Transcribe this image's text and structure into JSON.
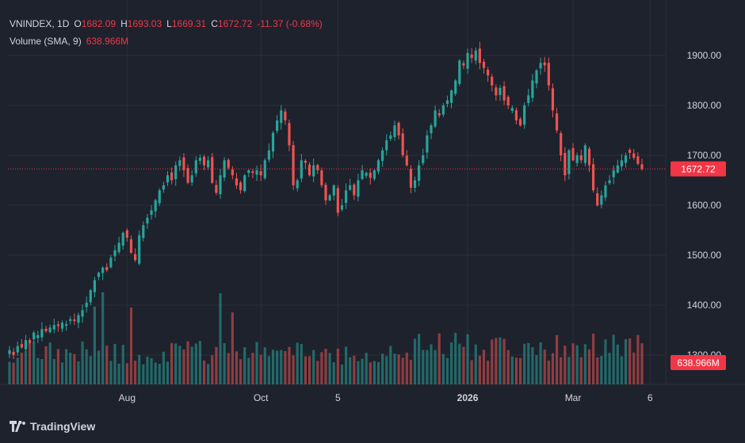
{
  "legend": {
    "symbol": "VNINDEX",
    "interval": "1D",
    "open_label": "O",
    "open": "1682.09",
    "high_label": "H",
    "high": "1693.03",
    "low_label": "L",
    "low": "1669.31",
    "close_label": "C",
    "close": "1672.72",
    "change": "-11.37 (-0.68%)",
    "volume_label": "Volume (SMA, 9)",
    "volume_value": "638.966M"
  },
  "badges": {
    "last_price": "1672.72",
    "last_volume": "638.966M"
  },
  "brand": {
    "name": "TradingView"
  },
  "colors": {
    "up": "#26a69a",
    "down": "#ef5350",
    "background": "#1e222d",
    "grid": "#2a2e39",
    "price_line": "#f23645"
  },
  "chart_data": {
    "type": "candlestick",
    "y_axis": {
      "ticks": [
        "1900.00",
        "1800.00",
        "1700.00",
        "1600.00",
        "1500.00",
        "1400.00",
        "1300.00"
      ],
      "ylim": [
        1235,
        1955
      ]
    },
    "x_axis": {
      "ticks": [
        {
          "label": "Aug",
          "index": 29,
          "bold": false
        },
        {
          "label": "Oct",
          "index": 62,
          "bold": false
        },
        {
          "label": "5",
          "index": 81,
          "bold": false
        },
        {
          "label": "2026",
          "index": 113,
          "bold": true
        },
        {
          "label": "Mar",
          "index": 139,
          "bold": false
        },
        {
          "label": "6",
          "index": 158,
          "bold": false
        }
      ]
    },
    "last_price": 1672.72,
    "candle_closes": [
      1310,
      1300,
      1318,
      1315,
      1330,
      1325,
      1345,
      1340,
      1352,
      1348,
      1355,
      1360,
      1358,
      1365,
      1362,
      1372,
      1368,
      1380,
      1390,
      1405,
      1430,
      1450,
      1465,
      1475,
      1470,
      1495,
      1510,
      1525,
      1545,
      1535,
      1505,
      1490,
      1540,
      1560,
      1575,
      1590,
      1610,
      1630,
      1640,
      1660,
      1650,
      1680,
      1690,
      1670,
      1645,
      1660,
      1690,
      1695,
      1680,
      1690,
      1645,
      1625,
      1660,
      1690,
      1675,
      1660,
      1640,
      1630,
      1660,
      1670,
      1665,
      1670,
      1660,
      1690,
      1710,
      1745,
      1770,
      1790,
      1770,
      1720,
      1640,
      1650,
      1690,
      1685,
      1660,
      1680,
      1670,
      1640,
      1610,
      1620,
      1640,
      1585,
      1600,
      1630,
      1640,
      1620,
      1650,
      1670,
      1665,
      1655,
      1670,
      1690,
      1710,
      1730,
      1740,
      1760,
      1740,
      1700,
      1680,
      1635,
      1650,
      1680,
      1700,
      1740,
      1760,
      1790,
      1780,
      1800,
      1810,
      1830,
      1850,
      1890,
      1880,
      1905,
      1895,
      1910,
      1885,
      1875,
      1860,
      1840,
      1820,
      1835,
      1810,
      1800,
      1795,
      1770,
      1760,
      1800,
      1820,
      1850,
      1870,
      1885,
      1880,
      1840,
      1790,
      1750,
      1700,
      1660,
      1710,
      1690,
      1700,
      1690,
      1720,
      1680,
      1630,
      1600,
      1620,
      1640,
      1650,
      1670,
      1680,
      1690,
      1700,
      1705,
      1695,
      1683,
      1672.72
    ],
    "volume_sma9_last": 638.966
  }
}
